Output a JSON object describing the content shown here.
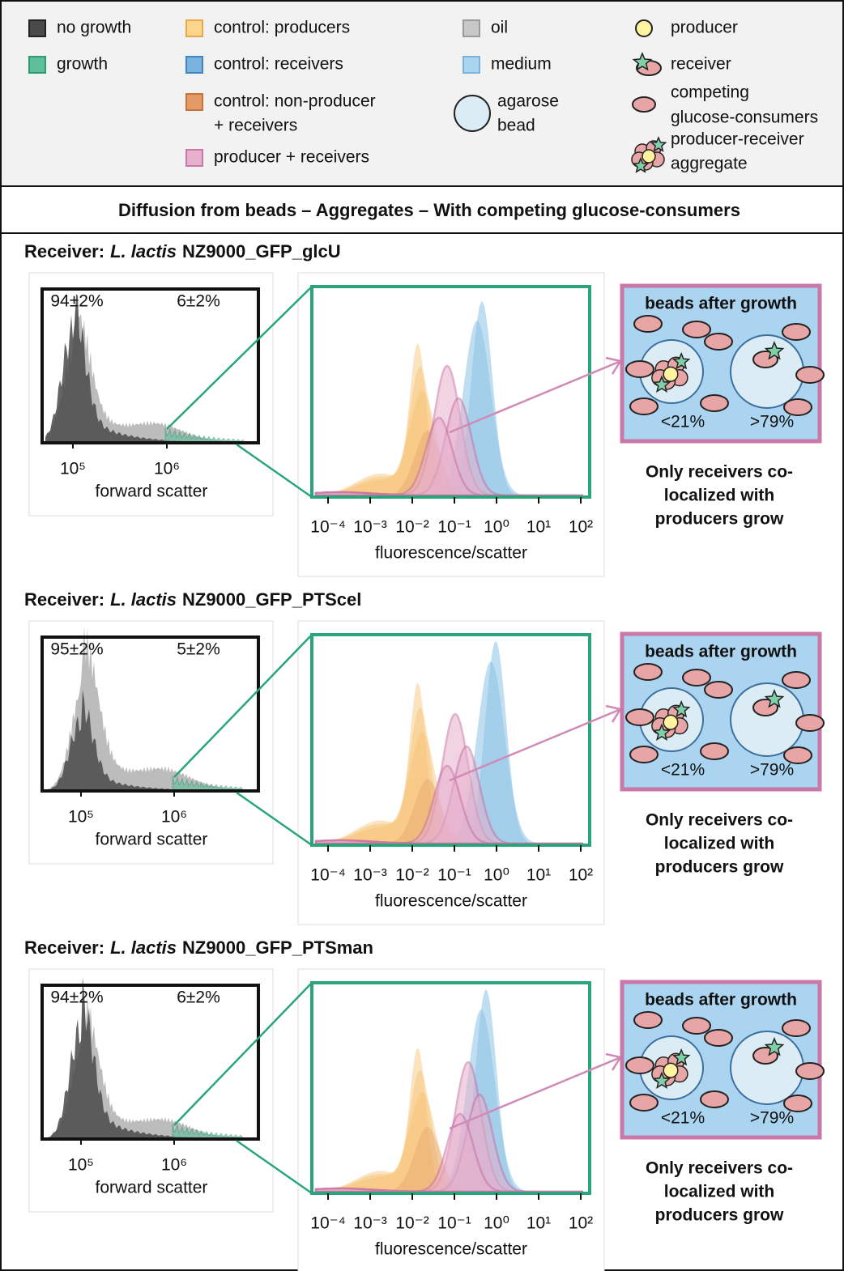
{
  "legend": {
    "items": [
      {
        "label": "no growth",
        "kind": "square",
        "fill": "#4a4a4a",
        "stroke": "#222222"
      },
      {
        "label": "growth",
        "kind": "square",
        "fill": "#5fbf9a",
        "stroke": "#2e9a70"
      },
      {
        "label": "control: producers",
        "kind": "square",
        "fill": "#fbd58b",
        "stroke": "#e8a948"
      },
      {
        "label": "control: receivers",
        "kind": "square",
        "fill": "#7ab3dd",
        "stroke": "#3f87c2"
      },
      {
        "label": "control: non-producer",
        "label2": "+ receivers",
        "kind": "square",
        "fill": "#e39a66",
        "stroke": "#c8733a"
      },
      {
        "label": "producer + receivers",
        "kind": "square",
        "fill": "#e7b0cc",
        "stroke": "#c978a8"
      },
      {
        "label": "oil",
        "kind": "square",
        "fill": "#c8c8c8",
        "stroke": "#9a9a9a"
      },
      {
        "label": "medium",
        "kind": "square",
        "fill": "#aad4ef",
        "stroke": "#7ab3dd"
      },
      {
        "label": "agarose",
        "label2": "bead",
        "kind": "bead",
        "fill": "#dcecf4",
        "stroke": "#222222"
      },
      {
        "label": "producer",
        "kind": "producer",
        "fill": "#fff3a0",
        "stroke": "#222222"
      },
      {
        "label": "receiver",
        "kind": "receiver",
        "fill": "#7fd0a8",
        "stroke": "#222222"
      },
      {
        "label": "competing",
        "label2": "glucose-consumers",
        "kind": "consumer",
        "fill": "#e8a5a5",
        "stroke": "#222222"
      },
      {
        "label": "producer-receiver",
        "label2": "aggregate",
        "kind": "aggregate",
        "fill": "#e8a5a5",
        "stroke": "#222222"
      }
    ]
  },
  "banner": {
    "title": "Diffusion from beads – Aggregates – With competing glucose-consumers"
  },
  "panels": [
    {
      "heading": {
        "prefix": "Receiver:",
        "species": "L. lactis",
        "strain": "NZ9000_GFP_glcU"
      },
      "scatter": {
        "left_pct": "94±2%",
        "right_pct": "6±2%",
        "ticks": [
          "10⁵",
          "10⁶"
        ],
        "xlabel": "forward scatter"
      },
      "fluor": {
        "ticks": [
          "10⁻⁴",
          "10⁻³",
          "10⁻²",
          "10⁻¹",
          "10⁰",
          "10¹",
          "10²"
        ],
        "xlabel": "fluorescence/scatter"
      },
      "diagram": {
        "title": "beads after growth",
        "left_pct": "<21%",
        "right_pct": ">79%",
        "caption": [
          "Only receivers co-",
          "localized with",
          "producers grow"
        ]
      }
    },
    {
      "heading": {
        "prefix": "Receiver:",
        "species": "L. lactis",
        "strain": "NZ9000_GFP_PTScel"
      },
      "scatter": {
        "left_pct": "95±2%",
        "right_pct": "5±2%",
        "ticks": [
          "10⁵",
          "10⁶"
        ],
        "xlabel": "forward scatter"
      },
      "fluor": {
        "ticks": [
          "10⁻⁴",
          "10⁻³",
          "10⁻²",
          "10⁻¹",
          "10⁰",
          "10¹",
          "10²"
        ],
        "xlabel": "fluorescence/scatter"
      },
      "diagram": {
        "title": "beads after growth",
        "left_pct": "<21%",
        "right_pct": ">79%",
        "caption": [
          "Only receivers co-",
          "localized with",
          "producers grow"
        ]
      }
    },
    {
      "heading": {
        "prefix": "Receiver:",
        "species": "L. lactis",
        "strain": "NZ9000_GFP_PTSman"
      },
      "scatter": {
        "left_pct": "94±2%",
        "right_pct": "6±2%",
        "ticks": [
          "10⁵",
          "10⁶"
        ],
        "xlabel": "forward scatter"
      },
      "fluor": {
        "ticks": [
          "10⁻⁴",
          "10⁻³",
          "10⁻²",
          "10⁻¹",
          "10⁰",
          "10¹",
          "10²"
        ],
        "xlabel": "fluorescence/scatter"
      },
      "diagram": {
        "title": "beads after growth",
        "left_pct": "<21%",
        "right_pct": ">79%",
        "caption": [
          "Only receivers co-",
          "localized with",
          "producers grow"
        ]
      }
    }
  ]
}
